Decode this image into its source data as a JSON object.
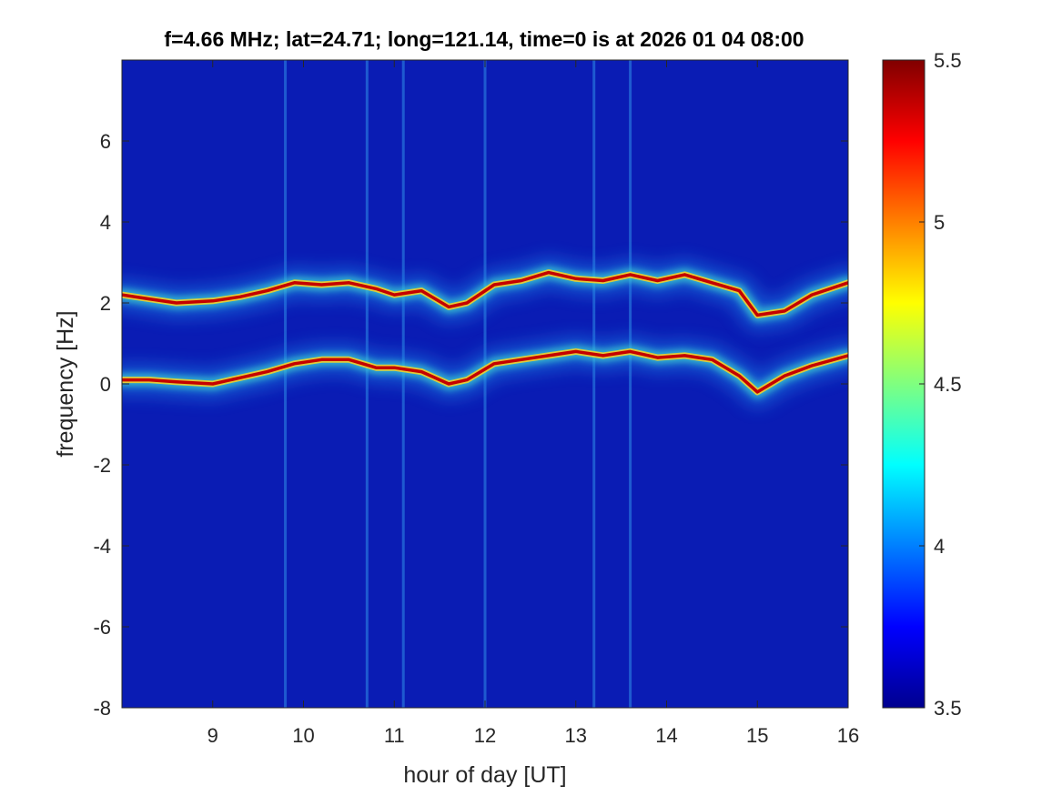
{
  "chart_data": {
    "type": "heatmap",
    "title": "f=4.66 MHz;  lat=24.71; long=121.14, time=0 is at 2026 01 04 08:00",
    "xlabel": "hour of day [UT]",
    "ylabel": "frequency [Hz]",
    "xlim": [
      8,
      16
    ],
    "ylim": [
      -8,
      8
    ],
    "x_ticks": [
      "9",
      "10",
      "11",
      "12",
      "13",
      "14",
      "15",
      "16"
    ],
    "y_ticks": [
      "-8",
      "-6",
      "-4",
      "-2",
      "0",
      "2",
      "4",
      "6"
    ],
    "colorbar": {
      "range": [
        3.5,
        5.5
      ],
      "ticks": [
        "3.5",
        "4",
        "4.5",
        "5",
        "5.5"
      ],
      "colormap": "jet"
    },
    "grid": false,
    "traces": [
      {
        "hours": [
          8.0,
          8.3,
          8.6,
          9.0,
          9.3,
          9.6,
          9.9,
          10.2,
          10.5,
          10.8,
          11.0,
          11.3,
          11.6,
          11.8,
          12.1,
          12.4,
          12.7,
          13.0,
          13.3,
          13.6,
          13.9,
          14.2,
          14.5,
          14.8,
          15.0,
          15.3,
          15.6,
          16.0
        ],
        "freq_hz": [
          2.2,
          2.1,
          2.0,
          2.05,
          2.15,
          2.3,
          2.5,
          2.45,
          2.5,
          2.35,
          2.2,
          2.3,
          1.9,
          2.0,
          2.45,
          2.55,
          2.75,
          2.6,
          2.55,
          2.7,
          2.55,
          2.7,
          2.5,
          2.3,
          1.7,
          1.8,
          2.2,
          2.5
        ]
      },
      {
        "hours": [
          8.0,
          8.3,
          8.6,
          9.0,
          9.3,
          9.6,
          9.9,
          10.2,
          10.5,
          10.8,
          11.0,
          11.3,
          11.6,
          11.8,
          12.1,
          12.4,
          12.7,
          13.0,
          13.3,
          13.6,
          13.9,
          14.2,
          14.5,
          14.8,
          15.0,
          15.3,
          15.6,
          16.0
        ],
        "freq_hz": [
          0.1,
          0.1,
          0.05,
          0.0,
          0.15,
          0.3,
          0.5,
          0.6,
          0.6,
          0.4,
          0.4,
          0.3,
          0.0,
          0.1,
          0.5,
          0.6,
          0.7,
          0.8,
          0.7,
          0.8,
          0.65,
          0.7,
          0.6,
          0.2,
          -0.2,
          0.2,
          0.45,
          0.7
        ]
      }
    ],
    "vertical_streaks_hours": [
      9.8,
      10.7,
      11.1,
      12.0,
      13.2,
      13.6
    ]
  }
}
